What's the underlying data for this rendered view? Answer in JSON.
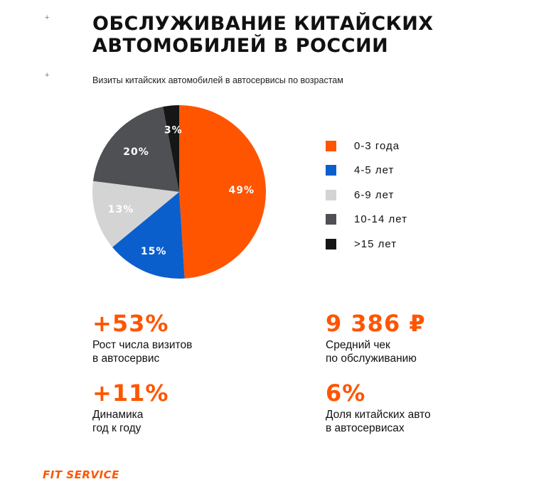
{
  "title_lines": [
    "ОБСЛУЖИВАНИЕ КИТАЙСКИХ",
    "АВТОМОБИЛЕЙ В РОССИИ"
  ],
  "subtitle": "Визиты китайских автомобилей в автосервисы по возрастам",
  "decor_plus": "+",
  "chart_data": {
    "type": "pie",
    "title": "Визиты китайских автомобилей в автосервисы по возрастам",
    "categories": [
      "0-3 года",
      "4-5 лет",
      "6-9 лет",
      "10-14 лет",
      ">15 лет"
    ],
    "values": [
      49,
      15,
      13,
      20,
      3
    ],
    "value_labels": [
      "49%",
      "15%",
      "13%",
      "20%",
      "3%"
    ],
    "colors": [
      "#ff5500",
      "#0b5fcc",
      "#d4d4d4",
      "#4f5054",
      "#161616"
    ],
    "label_colors": [
      "#ffffff",
      "#ffffff",
      "#ffffff",
      "#ffffff",
      "#ffffff"
    ],
    "legend": "right"
  },
  "stats": [
    {
      "value": "+53%",
      "desc": [
        "Рост числа визитов",
        "в автосервис"
      ]
    },
    {
      "value": "9 386 ₽",
      "desc": [
        "Средний чек",
        "по обслуживанию"
      ]
    },
    {
      "value": "+11%",
      "desc": [
        "Динамика",
        "год к году"
      ]
    },
    {
      "value": "6%",
      "desc": [
        "Доля китайских авто",
        "в автосервисах"
      ]
    }
  ],
  "brand": "FIT SERVICE"
}
